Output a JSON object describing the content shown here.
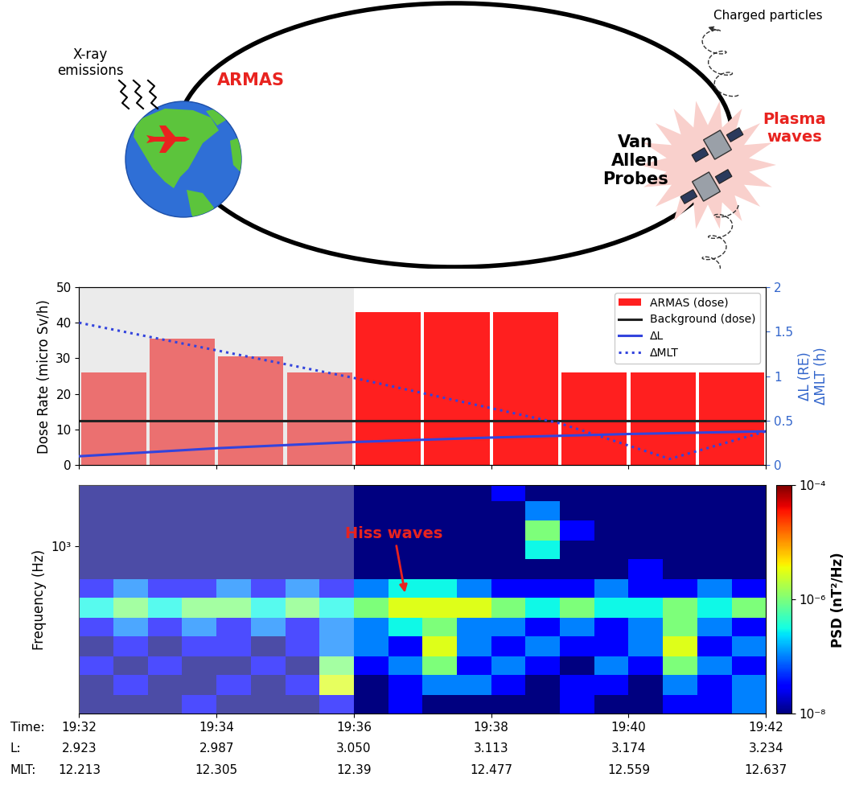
{
  "diagram": {
    "labels": {
      "xray": "X-ray\nemissions",
      "armas": "ARMAS",
      "probes": "Van\nAllen\nProbes",
      "waves": "Plasma\nwaves",
      "particles": "Charged particles"
    }
  },
  "chart_data": [
    {
      "type": "bar",
      "ylabel": "Dose Rate (micro Sv/h)",
      "y2label": "ΔL (RE)\nΔMLT (h)",
      "xlim": [
        32,
        42
      ],
      "ylim": [
        0,
        50
      ],
      "yticks": [
        0,
        10,
        20,
        30,
        40,
        50
      ],
      "y2lim": [
        0,
        2
      ],
      "y2ticks": [
        0,
        0.5,
        1,
        1.5,
        2
      ],
      "legend": "upper right",
      "tick_labels": "y",
      "highlight": [
        32,
        36
      ],
      "series": [
        {
          "name": "ARMAS (dose)",
          "type": "bar",
          "color": "#ff1f1f",
          "x": [
            32.5,
            33.5,
            34.5,
            35.5,
            36.5,
            37.5,
            38.5,
            39.5,
            40.5,
            41.5
          ],
          "values": [
            26,
            35.5,
            30.5,
            26,
            43,
            43,
            43,
            26,
            26,
            26
          ]
        },
        {
          "name": "Background (dose)",
          "type": "line",
          "color": "#222222",
          "line_style": "solid",
          "x": [
            32,
            42
          ],
          "values": [
            12.5,
            12.5
          ]
        },
        {
          "name": "ΔL",
          "type": "line",
          "axis": "y2",
          "color": "#3344dd",
          "line_style": "solid",
          "x": [
            32,
            34,
            36,
            38,
            40,
            42
          ],
          "values": [
            0.1,
            0.19,
            0.26,
            0.31,
            0.35,
            0.38
          ]
        },
        {
          "name": "ΔMLT",
          "type": "line",
          "axis": "y2",
          "color": "#3344dd",
          "line_style": "dotted",
          "x": [
            32,
            34,
            36,
            38,
            39,
            40.6,
            42
          ],
          "values": [
            1.6,
            1.29,
            0.98,
            0.64,
            0.47,
            0.07,
            0.38
          ]
        }
      ]
    },
    {
      "type": "heatmap",
      "ylabel": "Frequency (Hz)",
      "log": "y",
      "xlim": [
        32,
        42
      ],
      "ylim": [
        50,
        3000
      ],
      "yticks": [
        {
          "value": 1000,
          "label": "10³"
        }
      ],
      "xticks": [
        {
          "value": 32,
          "label": "19:32"
        },
        {
          "value": 34,
          "label": "19:34"
        },
        {
          "value": 36,
          "label": "19:36"
        },
        {
          "value": 38,
          "label": "19:38"
        },
        {
          "value": 40,
          "label": "19:40"
        },
        {
          "value": 42,
          "label": "19:42"
        }
      ],
      "L": [
        2.923,
        2.987,
        {
          "value": 3.05,
          "label": "3.050"
        },
        3.113,
        3.174,
        3.234
      ],
      "MLT": [
        12.213,
        12.305,
        12.39,
        12.477,
        12.559,
        12.637
      ],
      "row_labels": [
        "Time:",
        "L:",
        "MLT:"
      ],
      "highlight": [
        32,
        36
      ],
      "annotation": {
        "text": "Hiss waves",
        "x": 36.75,
        "y": 420
      },
      "x_edges": [
        32,
        32.5,
        33,
        33.5,
        34,
        34.5,
        35,
        35.5,
        36,
        36.5,
        37,
        37.5,
        38,
        38.5,
        39,
        39.5,
        40,
        40.5,
        41,
        41.5,
        42
      ],
      "y_edges": [
        50,
        70,
        100,
        140,
        200,
        280,
        400,
        560,
        800,
        1120,
        1600,
        2240,
        3000
      ],
      "cells": [
        [
          1e-08,
          1e-08,
          1e-08,
          3e-08,
          1e-08,
          1e-08,
          1e-08,
          3e-08,
          1e-08,
          3e-08,
          1e-08,
          1e-08,
          1e-08,
          1e-08,
          3e-08,
          1e-08,
          1e-08,
          3e-08,
          3e-08,
          1e-07
        ],
        [
          1e-08,
          3e-08,
          1e-08,
          1e-08,
          3e-08,
          1e-08,
          3e-08,
          3e-06,
          1e-08,
          3e-08,
          1e-07,
          1e-07,
          3e-08,
          1e-08,
          3e-08,
          3e-08,
          1e-08,
          1e-07,
          3e-08,
          1e-07
        ],
        [
          3e-08,
          1e-08,
          3e-08,
          1e-08,
          1e-08,
          3e-08,
          1e-08,
          1e-06,
          3e-08,
          1e-07,
          1e-06,
          3e-08,
          1e-07,
          3e-08,
          1e-08,
          1e-07,
          3e-08,
          1e-06,
          1e-07,
          3e-08
        ],
        [
          1e-08,
          3e-08,
          1e-08,
          3e-08,
          3e-08,
          1e-08,
          3e-08,
          1e-07,
          1e-07,
          3e-08,
          3e-06,
          1e-07,
          3e-08,
          1e-07,
          3e-08,
          3e-08,
          1e-07,
          3e-06,
          3e-08,
          1e-07
        ],
        [
          3e-08,
          1e-07,
          3e-08,
          1e-07,
          3e-08,
          1e-07,
          3e-08,
          1e-07,
          1e-07,
          3e-07,
          1e-06,
          1e-07,
          1e-07,
          3e-08,
          1e-07,
          3e-08,
          1e-07,
          1e-06,
          1e-07,
          3e-08
        ],
        [
          3e-07,
          1e-06,
          3e-07,
          1e-06,
          1e-06,
          3e-07,
          1e-06,
          3e-07,
          1e-06,
          3e-06,
          3e-06,
          3e-06,
          1e-06,
          3e-07,
          1e-06,
          3e-07,
          3e-07,
          1e-06,
          3e-07,
          1e-06
        ],
        [
          3e-08,
          1e-07,
          3e-08,
          3e-08,
          1e-07,
          3e-08,
          1e-07,
          3e-08,
          1e-07,
          3e-07,
          3e-07,
          1e-07,
          3e-08,
          3e-08,
          3e-08,
          1e-07,
          3e-08,
          3e-08,
          1e-07,
          3e-08
        ],
        [
          1e-08,
          1e-08,
          1e-08,
          1e-08,
          1e-08,
          1e-08,
          1e-08,
          1e-08,
          1e-08,
          1e-08,
          1e-08,
          1e-08,
          1e-08,
          1e-08,
          1e-08,
          1e-08,
          3e-08,
          1e-08,
          1e-08,
          1e-08
        ],
        [
          1e-08,
          1e-08,
          1e-08,
          1e-08,
          1e-08,
          1e-08,
          1e-08,
          1e-08,
          1e-08,
          1e-08,
          1e-08,
          1e-08,
          1e-08,
          3e-07,
          1e-08,
          1e-08,
          1e-08,
          1e-08,
          1e-08,
          1e-08
        ],
        [
          1e-08,
          1e-08,
          1e-08,
          1e-08,
          1e-08,
          1e-08,
          1e-08,
          1e-08,
          1e-08,
          1e-08,
          1e-08,
          1e-08,
          1e-08,
          1e-06,
          3e-08,
          1e-08,
          1e-08,
          1e-08,
          1e-08,
          1e-08
        ],
        [
          1e-08,
          1e-08,
          1e-08,
          1e-08,
          1e-08,
          1e-08,
          1e-08,
          1e-08,
          1e-08,
          1e-08,
          1e-08,
          1e-08,
          1e-08,
          1e-07,
          1e-08,
          1e-08,
          1e-08,
          1e-08,
          1e-08,
          1e-08
        ],
        [
          1e-08,
          1e-08,
          1e-08,
          1e-08,
          1e-08,
          1e-08,
          1e-08,
          1e-08,
          1e-08,
          1e-08,
          1e-08,
          1e-08,
          3e-08,
          1e-08,
          1e-08,
          1e-08,
          1e-08,
          1e-08,
          1e-08,
          1e-08
        ]
      ],
      "colorbar": {
        "label": "PSD (nT²/Hz)",
        "range": [
          1e-08,
          0.0001
        ],
        "ticks": [
          {
            "value": 1e-08,
            "label": "10⁻⁸"
          },
          {
            "value": 1e-06,
            "label": "10⁻⁶"
          },
          {
            "value": 0.0001,
            "label": "10⁻⁴"
          }
        ]
      }
    }
  ]
}
